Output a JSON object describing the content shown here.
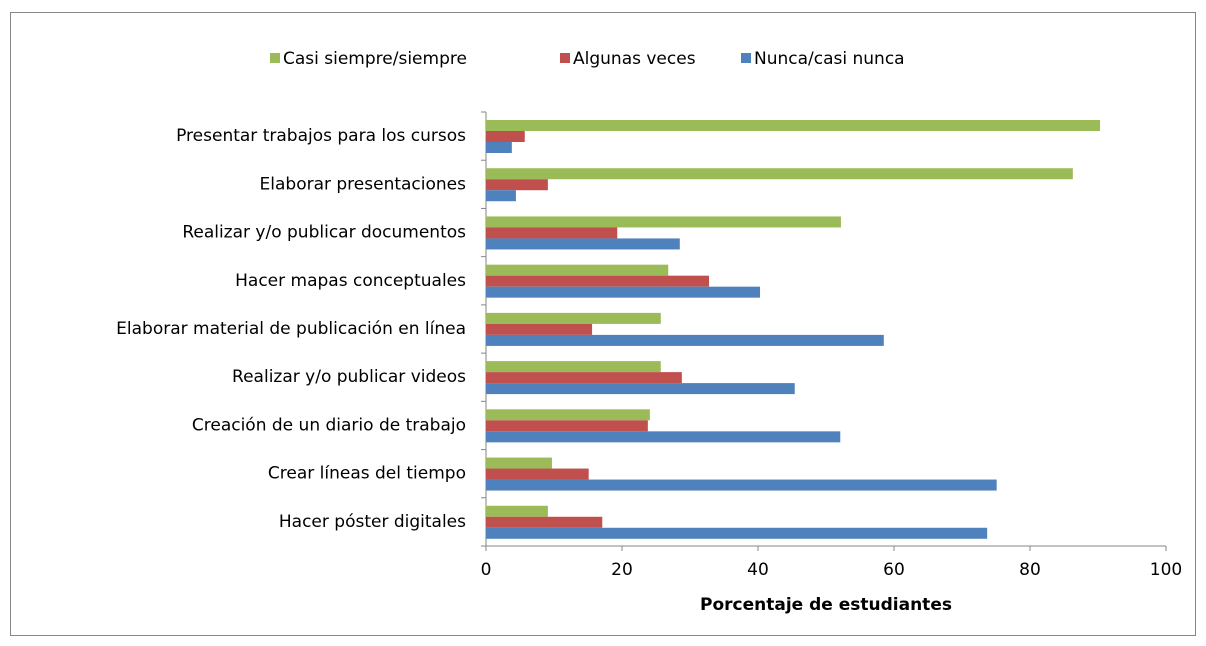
{
  "chart_data": {
    "type": "barh",
    "xlabel": "Porcentaje de estudiantes",
    "categories": [
      "Presentar trabajos para los cursos",
      "Elaborar presentaciones ",
      "Realizar y/o publicar documentos",
      "Hacer mapas conceptuales",
      "Elaborar material de publicación en línea",
      "Realizar y/o publicar videos",
      "Creación de un diario de trabajo",
      "Crear líneas del tiempo",
      "Hacer póster digitales"
    ],
    "series": [
      {
        "name": "Casi siempre/siempre",
        "color": "#9bbb59",
        "values": [
          90.3,
          86.3,
          52.2,
          26.8,
          25.7,
          25.7,
          24.1,
          9.7,
          9.1
        ]
      },
      {
        "name": "Algunas veces",
        "color": "#c0504d",
        "values": [
          5.7,
          9.1,
          19.3,
          32.8,
          15.6,
          28.8,
          23.8,
          15.1,
          17.1
        ]
      },
      {
        "name": "Nunca/casi nunca",
        "color": "#4f81bd",
        "values": [
          3.8,
          4.4,
          28.5,
          40.3,
          58.5,
          45.4,
          52.1,
          75.1,
          73.7
        ]
      }
    ],
    "xlim": [
      0,
      100
    ],
    "xticks": [
      0,
      20,
      40,
      60,
      80,
      100
    ],
    "grid": false,
    "legend": "top"
  }
}
